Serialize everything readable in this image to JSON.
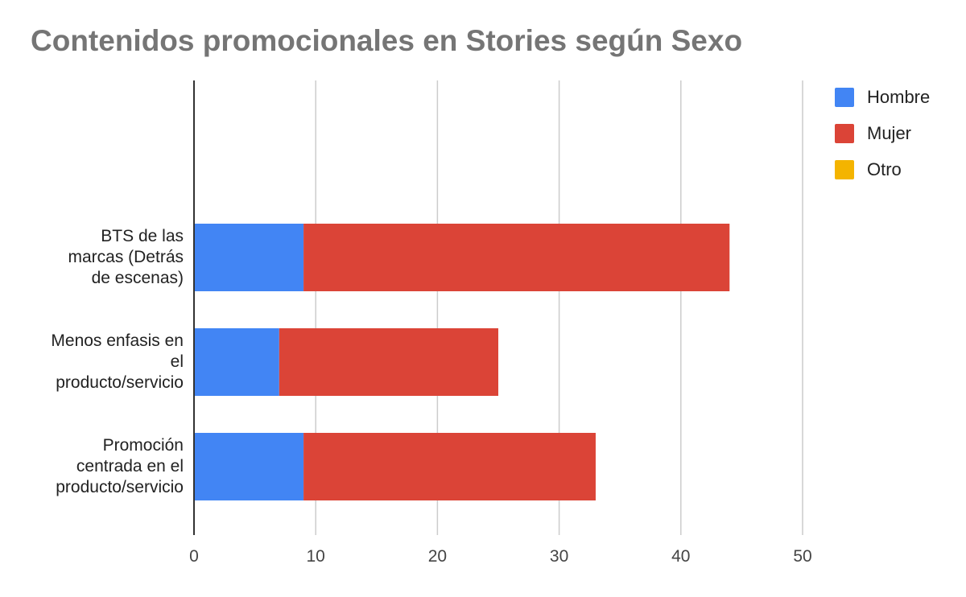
{
  "chart_data": {
    "type": "bar",
    "orientation": "horizontal",
    "stacked": true,
    "title": "Contenidos promocionales en Stories según Sexo",
    "categories": [
      [
        "BTS de las",
        "marcas (Detrás",
        "de escenas)"
      ],
      [
        "Menos enfasis en",
        "el",
        "producto/servicio"
      ],
      [
        "Promoción",
        "centrada en el",
        "producto/servicio"
      ]
    ],
    "series": [
      {
        "name": "Hombre",
        "color": "#4285f4",
        "values": [
          9,
          7,
          9
        ]
      },
      {
        "name": "Mujer",
        "color": "#db4437",
        "values": [
          35,
          18,
          24
        ]
      },
      {
        "name": "Otro",
        "color": "#f4b400",
        "values": [
          0,
          0,
          0
        ]
      }
    ],
    "xlim": [
      0,
      50
    ],
    "xticks": [
      "0",
      "10",
      "20",
      "30",
      "40",
      "50"
    ],
    "grid": true,
    "legend_position": "right"
  }
}
